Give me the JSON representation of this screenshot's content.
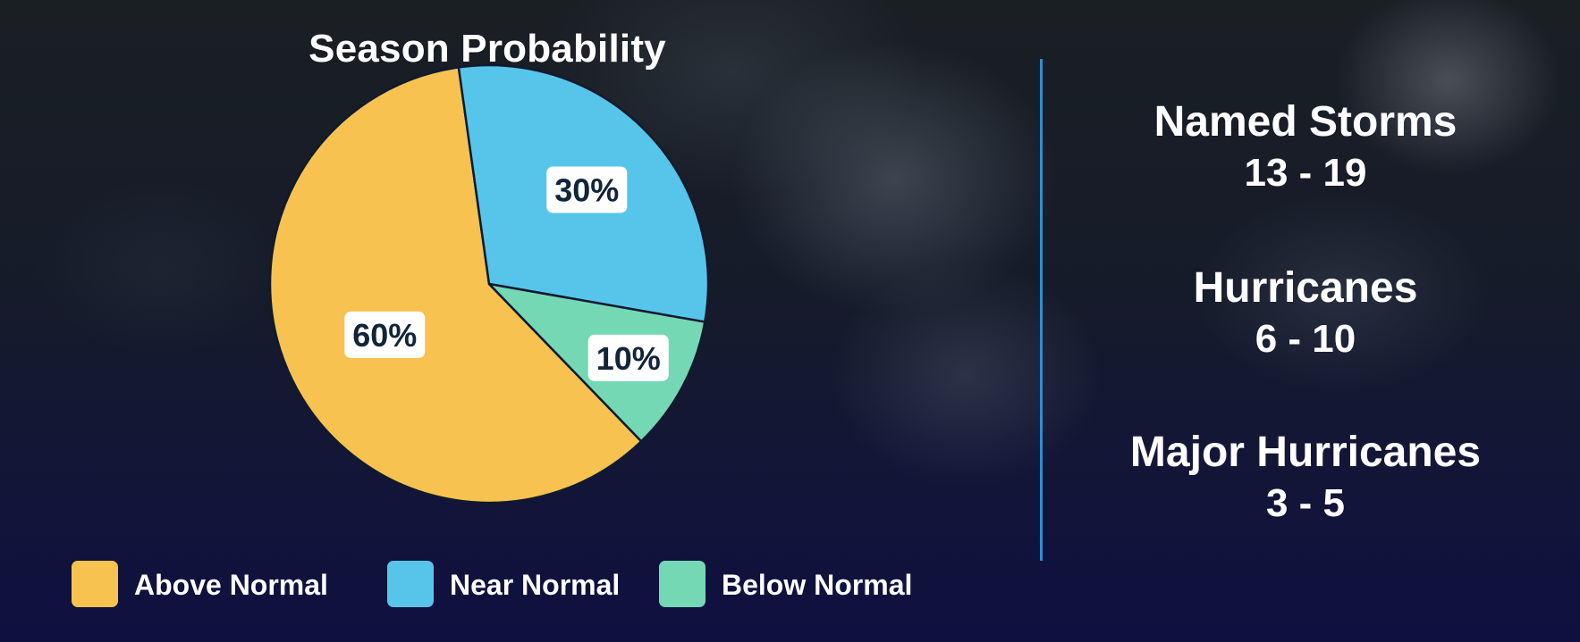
{
  "chart_data": {
    "type": "pie",
    "title": "Season Probability",
    "categories": [
      "Above Normal",
      "Near Normal",
      "Below Normal"
    ],
    "values": [
      60,
      30,
      10
    ],
    "value_labels": [
      "60%",
      "30%",
      "10%"
    ],
    "colors": [
      "#f8c250",
      "#57c5ea",
      "#75d8b5"
    ],
    "legend_position": "bottom"
  },
  "stats": [
    {
      "label": "Named Storms",
      "value": "13 - 19"
    },
    {
      "label": "Hurricanes",
      "value": "6 - 10"
    },
    {
      "label": "Major Hurricanes",
      "value": "3 - 5"
    }
  ],
  "colors": {
    "divider": "#2f8fd0",
    "text": "#ffffff",
    "label_text": "#13243a",
    "label_background": "#ffffff",
    "slice_outline": "#0f1a2e"
  }
}
